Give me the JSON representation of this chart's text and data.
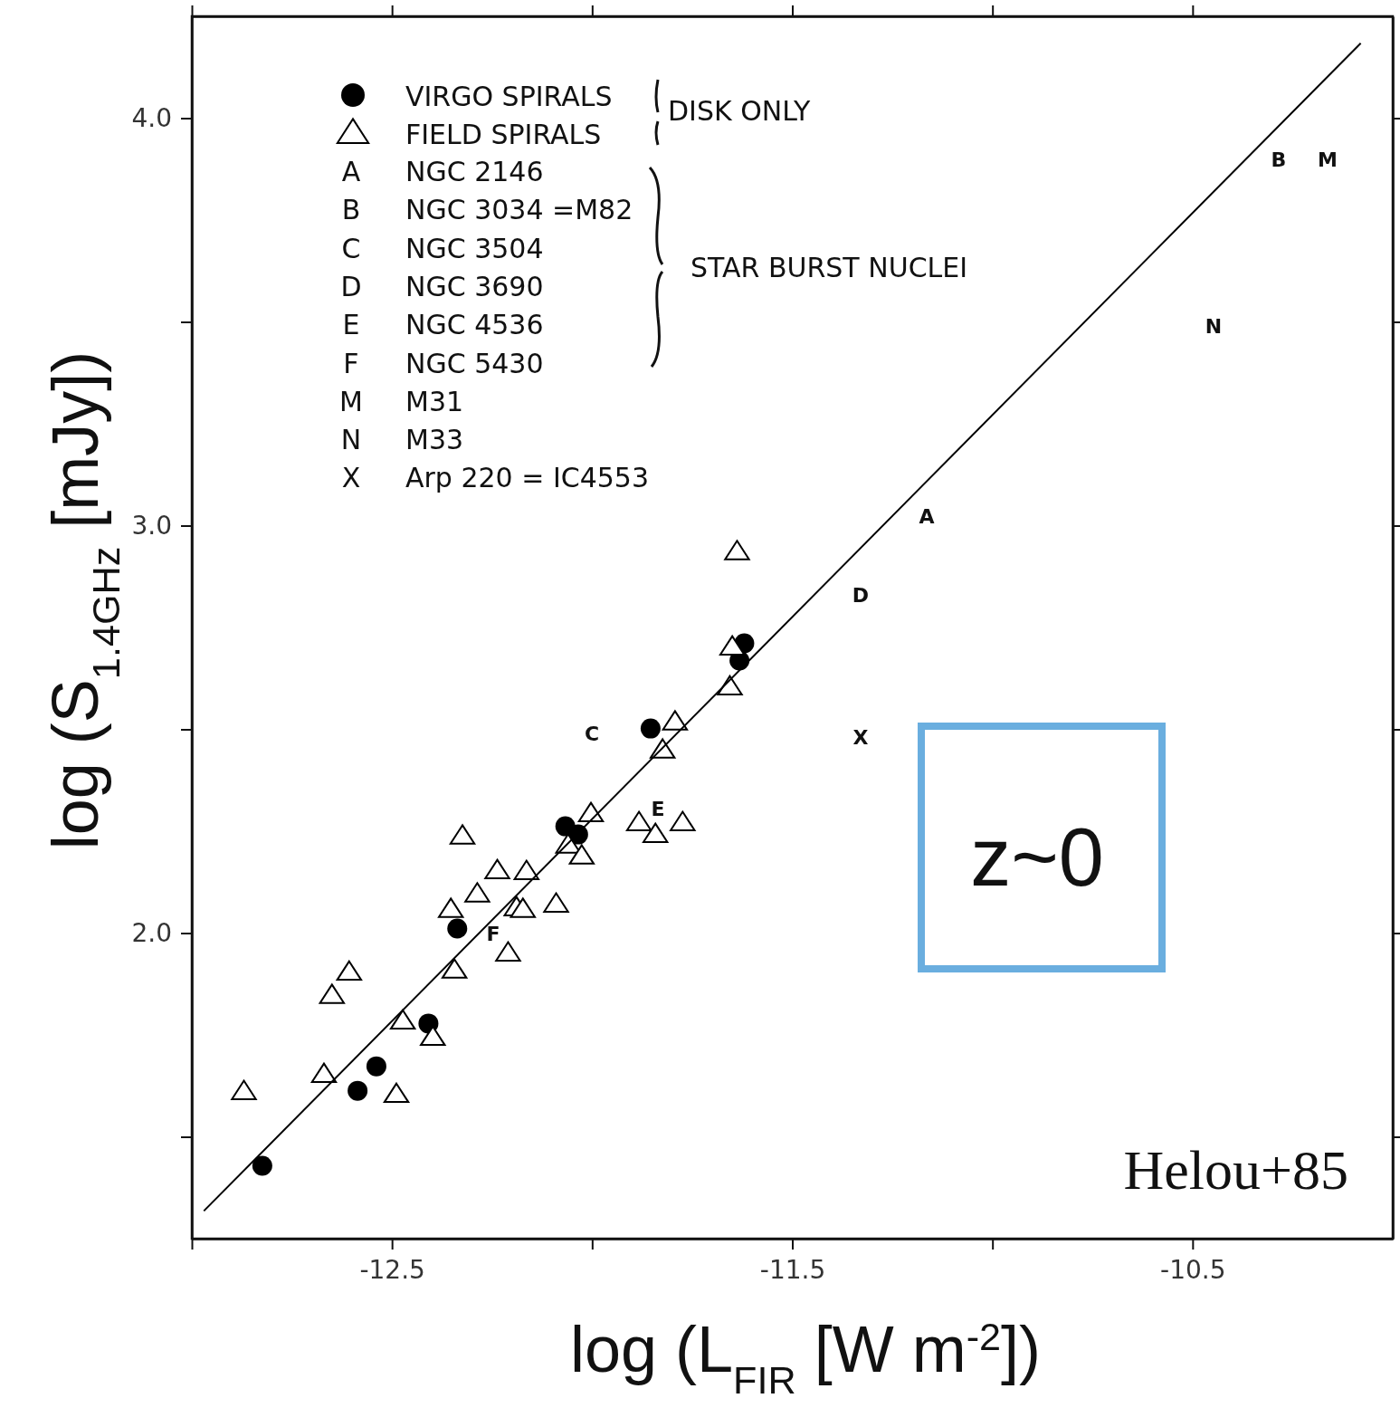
{
  "chart_data": {
    "type": "scatter",
    "xlabel": "log (L$_{FIR}$ [W m$^{-2}$])",
    "ylabel": "log (S$_{1.4GHz}$ [mJy])",
    "xlim": [
      -13.0,
      -10.0
    ],
    "ylim": [
      1.25,
      4.25
    ],
    "xticks": [
      {
        "value": -13.0,
        "label": null
      },
      -12.5,
      {
        "value": -12.0,
        "label": null
      },
      -11.5,
      {
        "value": -11.0,
        "label": null
      },
      -10.5
    ],
    "yticks": [
      {
        "value": 1.5,
        "label": null
      },
      {
        "value": 2.0,
        "label": "2.0"
      },
      {
        "value": 2.5,
        "label": null
      },
      {
        "value": 3.0,
        "label": "3.0"
      },
      {
        "value": 3.5,
        "label": null
      },
      {
        "value": 4.0,
        "label": "4.0"
      }
    ],
    "grid": false,
    "legend": "top left",
    "series": [
      {
        "name": "VIRGO SPIRALS",
        "color": "#000000",
        "marker": "circle",
        "x": [
          -12.824,
          -12.586,
          -12.539,
          -12.409,
          -12.337,
          -12.067,
          -12.035,
          -11.854,
          -11.632,
          -11.62
        ],
        "values": [
          1.429,
          1.613,
          1.673,
          1.778,
          2.011,
          2.262,
          2.242,
          2.502,
          2.669,
          2.711
        ]
      },
      {
        "name": "FIELD SPIRALS",
        "color": "#000000",
        "marker": "triangle",
        "x": [
          -12.87,
          -12.67,
          -12.65,
          -12.607,
          -12.489,
          -12.473,
          -12.398,
          -12.344,
          -12.353,
          -12.324,
          -12.287,
          -12.237,
          -12.21,
          -12.189,
          -12.173,
          -12.164,
          -12.09,
          -12.06,
          -12.026,
          -12.003,
          -11.883,
          -11.842,
          -11.774,
          -11.824,
          -11.793,
          -11.656,
          -11.65,
          -11.638
        ],
        "values": [
          1.611,
          1.653,
          1.847,
          1.904,
          1.604,
          1.784,
          1.744,
          1.909,
          2.058,
          2.238,
          2.096,
          2.153,
          1.951,
          2.062,
          2.058,
          2.151,
          2.071,
          2.216,
          2.189,
          2.293,
          2.271,
          2.242,
          2.271,
          2.449,
          2.518,
          2.604,
          2.702,
          2.936
        ]
      },
      {
        "type": "line",
        "color": "#000000",
        "x": [
          -12.97,
          -10.08
        ],
        "values": [
          1.318,
          4.184
        ]
      }
    ],
    "annotations": [
      "A NGC 2146",
      "B NGC 3034 =M82",
      "C NGC 3504",
      "D NGC 3690",
      "E NGC 4536",
      "F NGC 5430",
      "M M31",
      "N M33",
      "X Arp 220 = IC4553",
      "DISK ONLY",
      "STAR BURST NUCLEI",
      "z~0",
      "Helou+85",
      "A",
      "B",
      "C",
      "D",
      "E",
      "F",
      "M",
      "N",
      "X"
    ]
  }
}
